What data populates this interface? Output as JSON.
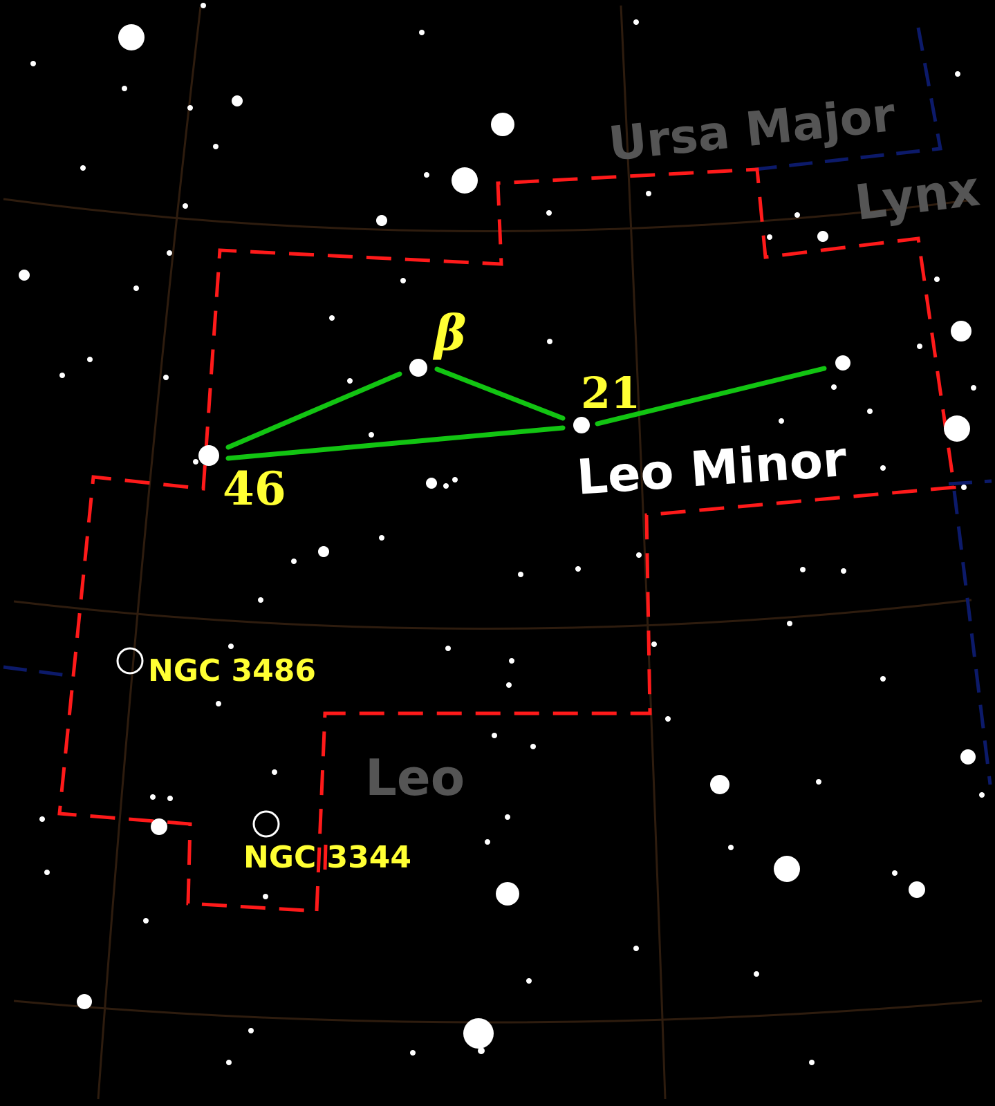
{
  "labels": {
    "main_constellation": "Leo Minor",
    "neighbor_ursa_major": "Ursa Major",
    "neighbor_lynx": "Lynx",
    "neighbor_leo": "Leo",
    "star_beta": "β",
    "star_21": "21",
    "star_46": "46",
    "galaxy_ngc3486": "NGC 3486",
    "galaxy_ngc3344": "NGC 3344"
  },
  "colors": {
    "background": "#000000",
    "grid": "#2e1c0e",
    "boundary_main": "#ff1a1a",
    "boundary_other": "#0c1a6a",
    "stick_figure": "#12c412",
    "star": "#ffffff",
    "star_label": "#ffff33",
    "neighbor_label": "#555555",
    "main_label": "#ffffff"
  }
}
